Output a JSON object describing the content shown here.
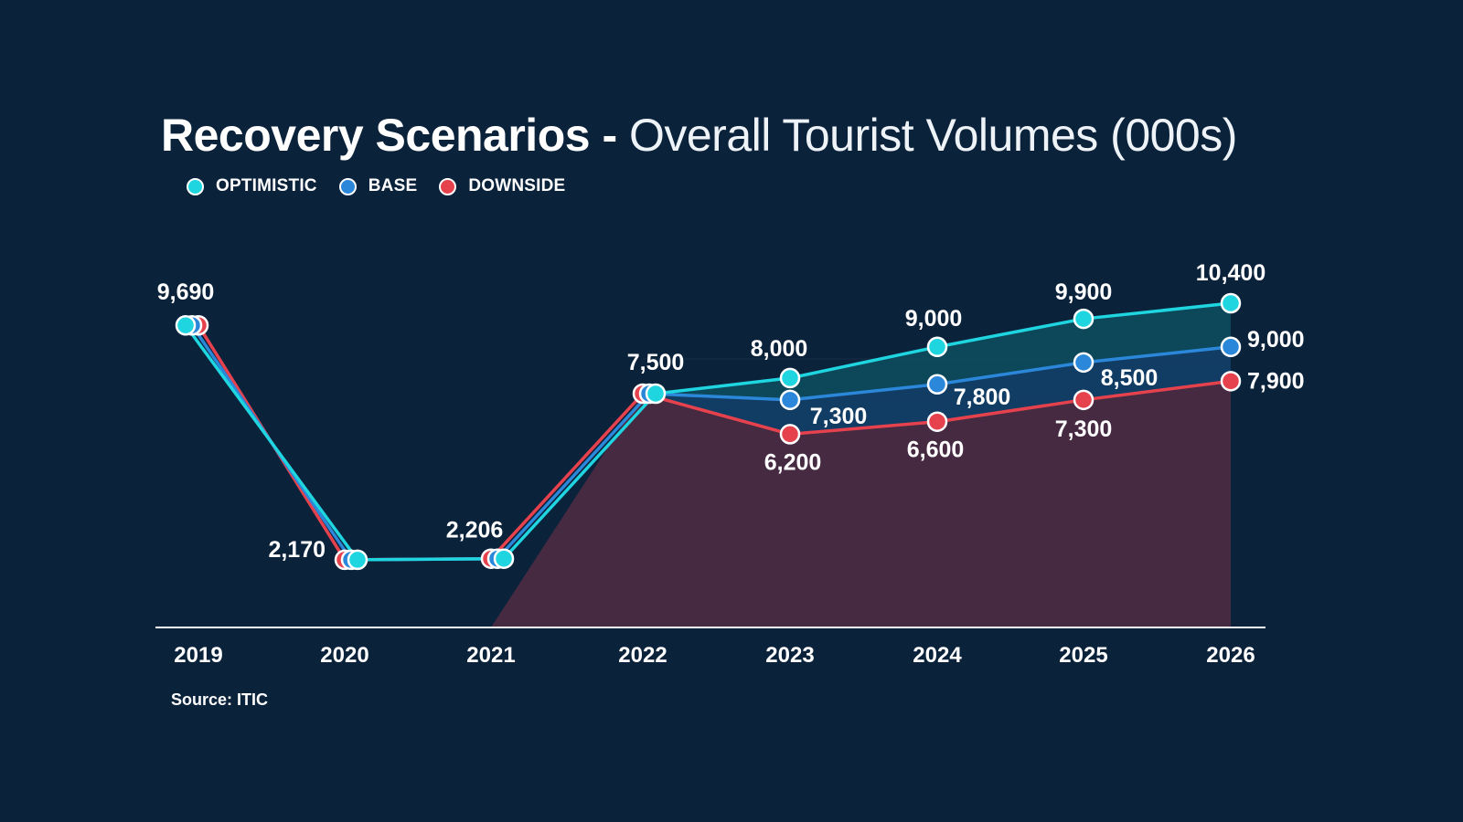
{
  "header": {
    "title_bold": "Recovery Scenarios -",
    "title_light": " Overall Tourist Volumes (000s)"
  },
  "legend": {
    "items": [
      {
        "label": "OPTIMISTIC",
        "color": "#1ed5e0"
      },
      {
        "label": "BASE",
        "color": "#2b87d9"
      },
      {
        "label": "DOWNSIDE",
        "color": "#e6424d"
      }
    ]
  },
  "footer": {
    "source": "Source: ITIC"
  },
  "colors": {
    "background": "#0b223b",
    "optimistic": "#1ed5e0",
    "base": "#2b87d9",
    "downside": "#e6424d"
  },
  "chart_data": {
    "type": "line",
    "title": "Recovery Scenarios - Overall Tourist Volumes (000s)",
    "x": [
      "2019",
      "2020",
      "2021",
      "2022",
      "2023",
      "2024",
      "2025",
      "2026"
    ],
    "ylim": [
      0,
      10400
    ],
    "grid": false,
    "legend_position": "top-left",
    "series": [
      {
        "name": "OPTIMISTIC",
        "values": [
          9690,
          2170,
          2206,
          7500,
          8000,
          9000,
          9900,
          10400
        ]
      },
      {
        "name": "BASE",
        "values": [
          9690,
          2170,
          2206,
          7500,
          7300,
          7800,
          8500,
          9000
        ]
      },
      {
        "name": "DOWNSIDE",
        "values": [
          9690,
          2170,
          2206,
          7500,
          6200,
          6600,
          7300,
          7900
        ]
      }
    ],
    "data_labels": [
      {
        "x": "2019",
        "series": "OPTIMISTIC",
        "text": "9,690"
      },
      {
        "x": "2020",
        "series": "OPTIMISTIC",
        "text": "2,170"
      },
      {
        "x": "2021",
        "series": "OPTIMISTIC",
        "text": "2,206"
      },
      {
        "x": "2022",
        "series": "OPTIMISTIC",
        "text": "7,500"
      },
      {
        "x": "2023",
        "series": "OPTIMISTIC",
        "text": "8,000"
      },
      {
        "x": "2024",
        "series": "OPTIMISTIC",
        "text": "9,000"
      },
      {
        "x": "2025",
        "series": "OPTIMISTIC",
        "text": "9,900"
      },
      {
        "x": "2026",
        "series": "OPTIMISTIC",
        "text": "10,400"
      },
      {
        "x": "2023",
        "series": "BASE",
        "text": "7,300"
      },
      {
        "x": "2024",
        "series": "BASE",
        "text": "7,800"
      },
      {
        "x": "2025",
        "series": "BASE",
        "text": "8,500"
      },
      {
        "x": "2026",
        "series": "BASE",
        "text": "9,000"
      },
      {
        "x": "2023",
        "series": "DOWNSIDE",
        "text": "6,200"
      },
      {
        "x": "2024",
        "series": "DOWNSIDE",
        "text": "6,600"
      },
      {
        "x": "2025",
        "series": "DOWNSIDE",
        "text": "7,300"
      },
      {
        "x": "2026",
        "series": "DOWNSIDE",
        "text": "7,900"
      }
    ]
  }
}
